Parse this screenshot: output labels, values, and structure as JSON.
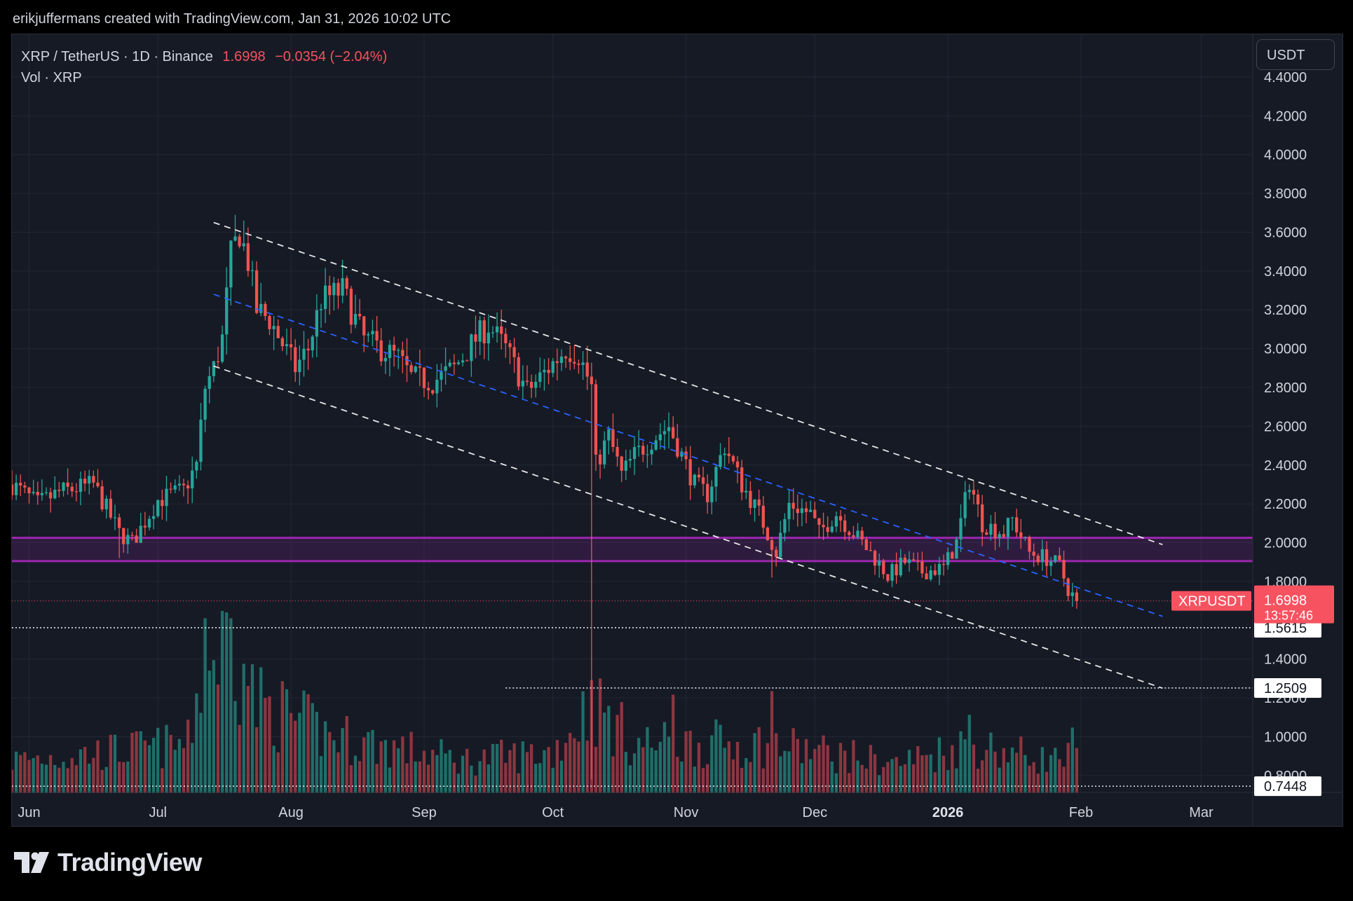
{
  "attribution": "erikjuffermans created with TradingView.com, Jan 31, 2026 10:02 UTC",
  "legend": {
    "symbol_line": "XRP / TetherUS · 1D · Binance",
    "last_price": "1.6998",
    "change": "−0.0354 (−2.04%)",
    "volume_line": "Vol · XRP"
  },
  "currency_label": "USDT",
  "brand": {
    "name": "TradingView",
    "logo_icon": "tradingview-logo-icon"
  },
  "colors": {
    "up": "#26a69a",
    "down": "#ef5350",
    "up_volume": "#1f6f69",
    "down_volume": "#8c3640",
    "zone": "#9c27b0",
    "channel": "#ffffff",
    "midline": "#2962ff",
    "price_tag": "#f7525f"
  },
  "chart_data": {
    "type": "candlestick",
    "symbol": "XRPUSDT",
    "interval": "1D",
    "x_range": [
      "2025-05-28",
      "2026-03-13"
    ],
    "y_range": [
      0.72,
      4.62
    ],
    "y_ticks": [
      "4.4000",
      "4.2000",
      "4.0000",
      "3.8000",
      "3.6000",
      "3.4000",
      "3.2000",
      "3.0000",
      "2.8000",
      "2.6000",
      "2.4000",
      "2.2000",
      "2.0000",
      "1.8000",
      "1.4000",
      "1.2000",
      "1.0000",
      "0.8000"
    ],
    "x_ticks": [
      {
        "label": "Jun",
        "date": "2025-06-01",
        "bold": false
      },
      {
        "label": "Jul",
        "date": "2025-07-01",
        "bold": false
      },
      {
        "label": "Aug",
        "date": "2025-08-01",
        "bold": false
      },
      {
        "label": "Sep",
        "date": "2025-09-01",
        "bold": false
      },
      {
        "label": "Oct",
        "date": "2025-10-01",
        "bold": false
      },
      {
        "label": "Nov",
        "date": "2025-11-01",
        "bold": false
      },
      {
        "label": "Dec",
        "date": "2025-12-01",
        "bold": false
      },
      {
        "label": "2026",
        "date": "2026-01-01",
        "bold": true
      },
      {
        "label": "Feb",
        "date": "2026-02-01",
        "bold": false
      },
      {
        "label": "Mar",
        "date": "2026-03-01",
        "bold": false
      }
    ],
    "price_path": [
      [
        "2025-05-28",
        2.3
      ],
      [
        "2025-06-03",
        2.2
      ],
      [
        "2025-06-08",
        2.26
      ],
      [
        "2025-06-16",
        2.3
      ],
      [
        "2025-06-22",
        2.05
      ],
      [
        "2025-06-25",
        2.0
      ],
      [
        "2025-07-01",
        2.22
      ],
      [
        "2025-07-07",
        2.27
      ],
      [
        "2025-07-10",
        2.4
      ],
      [
        "2025-07-12",
        2.8
      ],
      [
        "2025-07-14",
        2.9
      ],
      [
        "2025-07-16",
        3.05
      ],
      [
        "2025-07-18",
        3.48
      ],
      [
        "2025-07-20",
        3.6
      ],
      [
        "2025-07-22",
        3.45
      ],
      [
        "2025-07-24",
        3.2
      ],
      [
        "2025-07-27",
        3.15
      ],
      [
        "2025-08-02",
        2.9
      ],
      [
        "2025-08-05",
        3.0
      ],
      [
        "2025-08-08",
        3.25
      ],
      [
        "2025-08-13",
        3.3
      ],
      [
        "2025-08-18",
        3.05
      ],
      [
        "2025-08-22",
        3.0
      ],
      [
        "2025-08-26",
        2.95
      ],
      [
        "2025-08-29",
        2.85
      ],
      [
        "2025-09-03",
        2.83
      ],
      [
        "2025-09-08",
        2.9
      ],
      [
        "2025-09-13",
        3.05
      ],
      [
        "2025-09-16",
        3.12
      ],
      [
        "2025-09-20",
        3.0
      ],
      [
        "2025-09-25",
        2.78
      ],
      [
        "2025-09-28",
        2.85
      ],
      [
        "2025-10-04",
        3.0
      ],
      [
        "2025-10-07",
        2.97
      ],
      [
        "2025-10-10",
        2.8
      ],
      [
        "2025-10-11",
        2.4
      ],
      [
        "2025-10-14",
        2.55
      ],
      [
        "2025-10-17",
        2.35
      ],
      [
        "2025-10-20",
        2.45
      ],
      [
        "2025-10-25",
        2.55
      ],
      [
        "2025-10-28",
        2.6
      ],
      [
        "2025-11-03",
        2.3
      ],
      [
        "2025-11-06",
        2.25
      ],
      [
        "2025-11-10",
        2.5
      ],
      [
        "2025-11-14",
        2.3
      ],
      [
        "2025-11-18",
        2.15
      ],
      [
        "2025-11-22",
        1.95
      ],
      [
        "2025-11-25",
        2.2
      ],
      [
        "2025-11-30",
        2.15
      ],
      [
        "2025-12-02",
        2.05
      ],
      [
        "2025-12-06",
        2.15
      ],
      [
        "2025-12-10",
        2.05
      ],
      [
        "2025-12-15",
        1.92
      ],
      [
        "2025-12-18",
        1.83
      ],
      [
        "2025-12-22",
        1.9
      ],
      [
        "2025-12-26",
        1.85
      ],
      [
        "2025-12-31",
        1.87
      ],
      [
        "2026-01-03",
        2.0
      ],
      [
        "2026-01-06",
        2.32
      ],
      [
        "2026-01-09",
        2.1
      ],
      [
        "2026-01-14",
        2.05
      ],
      [
        "2026-01-16",
        2.12
      ],
      [
        "2026-01-20",
        1.95
      ],
      [
        "2026-01-24",
        1.92
      ],
      [
        "2026-01-27",
        1.88
      ],
      [
        "2026-01-29",
        1.76
      ],
      [
        "2026-01-31",
        1.7
      ]
    ],
    "volume_path": [
      [
        "2025-05-28",
        0.2
      ],
      [
        "2025-06-20",
        0.25
      ],
      [
        "2025-07-08",
        0.3
      ],
      [
        "2025-07-12",
        0.85
      ],
      [
        "2025-07-15",
        0.9
      ],
      [
        "2025-07-18",
        0.95
      ],
      [
        "2025-07-24",
        0.55
      ],
      [
        "2025-08-10",
        0.35
      ],
      [
        "2025-09-10",
        0.2
      ],
      [
        "2025-10-01",
        0.25
      ],
      [
        "2025-10-10",
        0.55
      ],
      [
        "2025-10-20",
        0.3
      ],
      [
        "2025-11-20",
        0.3
      ],
      [
        "2025-12-20",
        0.18
      ],
      [
        "2026-01-06",
        0.3
      ],
      [
        "2026-01-25",
        0.2
      ],
      [
        "2026-01-31",
        0.22
      ]
    ],
    "volume_spikes": [
      {
        "date": "2025-07-12",
        "value": 0.96
      },
      {
        "date": "2025-07-18",
        "value": 0.96
      },
      {
        "date": "2025-07-14",
        "value": 0.73
      },
      {
        "date": "2025-07-21",
        "value": 0.71
      },
      {
        "date": "2025-10-10",
        "value": 0.62
      },
      {
        "date": "2025-11-21",
        "value": 0.56
      },
      {
        "date": "2025-10-29",
        "value": 0.54
      },
      {
        "date": "2026-01-06",
        "value": 0.43
      },
      {
        "date": "2026-01-30",
        "value": 0.36
      }
    ],
    "big_wicks": [
      {
        "date": "2025-10-10",
        "low": 0.78
      },
      {
        "date": "2025-06-22",
        "low": 1.92
      },
      {
        "date": "2025-11-21",
        "low": 1.82
      }
    ],
    "resistance_zone": {
      "top": 2.025,
      "bottom": 1.905
    },
    "channel": {
      "upper": [
        [
          "2025-07-14",
          3.65
        ],
        [
          "2026-02-20",
          1.99
        ]
      ],
      "lower": [
        [
          "2025-07-14",
          2.91
        ],
        [
          "2026-02-20",
          1.25
        ]
      ],
      "mid": [
        [
          "2025-07-14",
          3.28
        ],
        [
          "2026-02-20",
          1.62
        ]
      ]
    },
    "dotted_levels": [
      {
        "price": 1.5615,
        "label": "1.5615",
        "from": "2025-05-28"
      },
      {
        "price": 1.2509,
        "label": "1.2509",
        "from": "2025-09-20"
      },
      {
        "price": 0.7448,
        "label": "0.7448",
        "from": "2025-05-28"
      }
    ],
    "last_price": {
      "price": 1.6998,
      "label": "1.6998",
      "countdown": "13:57:46",
      "symbol": "XRPUSDT"
    }
  }
}
